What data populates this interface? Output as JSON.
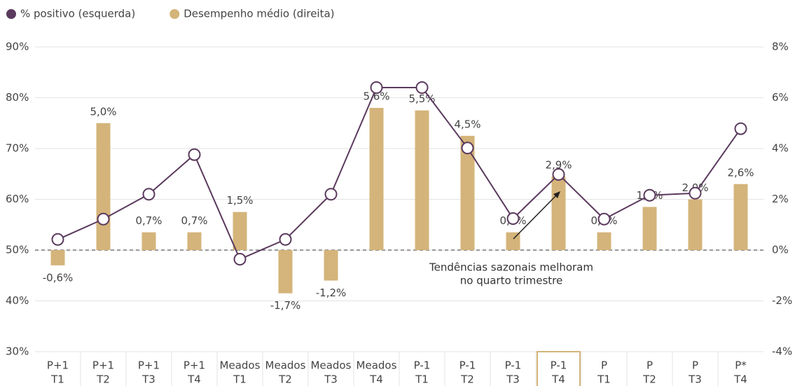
{
  "chart_data": {
    "type": "combo",
    "categories": [
      [
        "P+1",
        "T1"
      ],
      [
        "P+1",
        "T2"
      ],
      [
        "P+1",
        "T3"
      ],
      [
        "P+1",
        "T4"
      ],
      [
        "Meados",
        "T1"
      ],
      [
        "Meados",
        "T2"
      ],
      [
        "Meados",
        "T3"
      ],
      [
        "Meados",
        "T4"
      ],
      [
        "P-1",
        "T1"
      ],
      [
        "P-1",
        "T2"
      ],
      [
        "P-1",
        "T3"
      ],
      [
        "P-1",
        "T4"
      ],
      [
        "P",
        "T1"
      ],
      [
        "P",
        "T2"
      ],
      [
        "P",
        "T3"
      ],
      [
        "P*",
        "T4"
      ]
    ],
    "series": [
      {
        "name": "% positivo (esquerda)",
        "type": "line",
        "axis": "y",
        "color": "#5b3a5e",
        "values": [
          52.1,
          56.1,
          61.0,
          68.8,
          48.2,
          52.1,
          61.0,
          82.0,
          82.0,
          70.1,
          56.2,
          64.9,
          56.1,
          60.8,
          61.2,
          73.9
        ]
      },
      {
        "name": "Desempenho médio (direita)",
        "type": "bar",
        "axis": "y2",
        "color": "#d4b47a",
        "values": [
          -0.6,
          5.0,
          0.7,
          0.7,
          1.5,
          -1.7,
          -1.2,
          5.6,
          5.5,
          4.5,
          0.7,
          2.9,
          0.7,
          1.7,
          2.0,
          2.6
        ],
        "value_labels": [
          "-0,6%",
          "5,0%",
          "0,7%",
          "0,7%",
          "1,5%",
          "-1,7%",
          "-1,2%",
          "5,6%",
          "5,5%",
          "4,5%",
          "0,7%",
          "2,9%",
          "0,7%",
          "1,7%",
          "2,0%",
          "2,6%"
        ]
      }
    ],
    "ylim": [
      30,
      90
    ],
    "yticks": [
      {
        "value": 30,
        "label": "30%"
      },
      {
        "value": 40,
        "label": "40%"
      },
      {
        "value": 50,
        "label": "50%"
      },
      {
        "value": 60,
        "label": "60%"
      },
      {
        "value": 70,
        "label": "70%"
      },
      {
        "value": 80,
        "label": "80%"
      },
      {
        "value": 90,
        "label": "90%"
      }
    ],
    "y2lim": [
      -4,
      8
    ],
    "y2ticks": [
      {
        "value": -4,
        "label": "-4%"
      },
      {
        "value": -2,
        "label": "-2%"
      },
      {
        "value": 0,
        "label": "0%"
      },
      {
        "value": 2,
        "label": "2%"
      },
      {
        "value": 4,
        "label": "4%"
      },
      {
        "value": 6,
        "label": "6%"
      },
      {
        "value": 8,
        "label": "8%"
      }
    ],
    "grid": true,
    "annotation": [
      "Tendências sazonais melhoram",
      "no quarto trimestre"
    ],
    "highlight_index": 11
  }
}
